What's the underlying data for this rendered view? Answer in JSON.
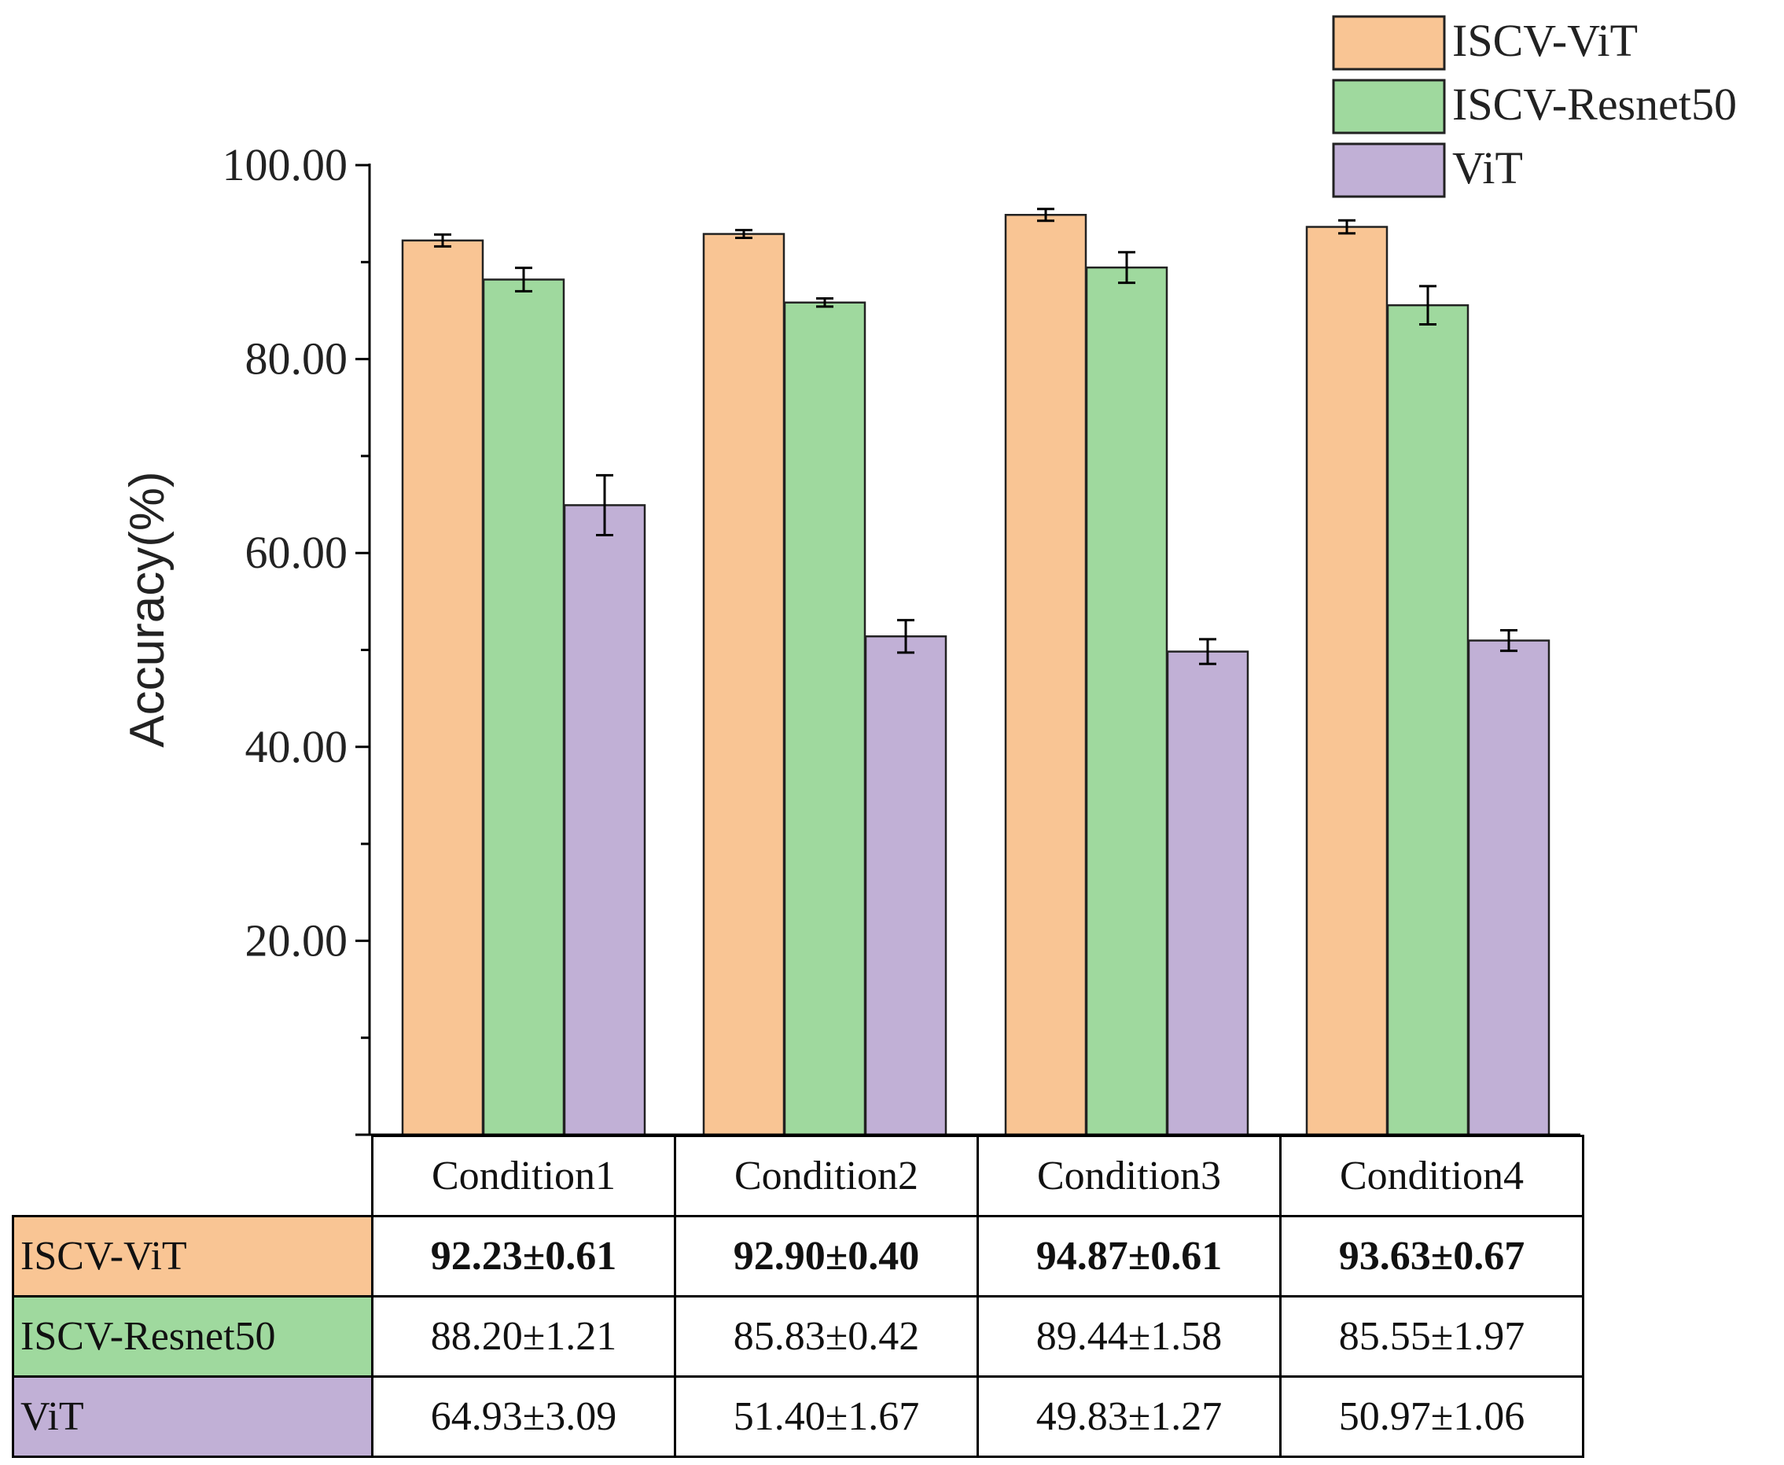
{
  "chart_data": {
    "type": "bar",
    "title": "",
    "xlabel": "",
    "ylabel": "Accuracy(%)",
    "ylim": [
      0,
      100
    ],
    "yticks": [
      "20.00",
      "40.00",
      "60.00",
      "80.00",
      "100.00"
    ],
    "ytick_values": [
      20,
      40,
      60,
      80,
      100
    ],
    "categories": [
      "Condition1",
      "Condition2",
      "Condition3",
      "Condition4"
    ],
    "series": [
      {
        "name": "ISCV-ViT",
        "color": "#f9c594",
        "values": [
          92.23,
          92.9,
          94.87,
          93.63
        ],
        "errors": [
          0.61,
          0.4,
          0.61,
          0.67
        ]
      },
      {
        "name": "ISCV-Resnet50",
        "color": "#9fd99e",
        "values": [
          88.2,
          85.83,
          89.44,
          85.55
        ],
        "errors": [
          1.21,
          0.42,
          1.58,
          1.97
        ]
      },
      {
        "name": "ViT",
        "color": "#c1b0d6",
        "values": [
          64.93,
          51.4,
          49.83,
          50.97
        ],
        "errors": [
          3.09,
          1.67,
          1.27,
          1.06
        ]
      }
    ],
    "legend_position": "top-right",
    "grid": false
  },
  "table": {
    "headers": [
      "Condition1",
      "Condition2",
      "Condition3",
      "Condition4"
    ],
    "rows": [
      {
        "label": "ISCV-ViT",
        "color": "#f9c594",
        "bold": true,
        "cells": [
          "92.23±0.61",
          "92.90±0.40",
          "94.87±0.61",
          "93.63±0.67"
        ]
      },
      {
        "label": "ISCV-Resnet50",
        "color": "#9fd99e",
        "bold": false,
        "cells": [
          "88.20±1.21",
          "85.83±0.42",
          "89.44±1.58",
          "85.55±1.97"
        ]
      },
      {
        "label": "ViT",
        "color": "#c1b0d6",
        "bold": false,
        "cells": [
          "64.93±3.09",
          "51.40±1.67",
          "49.83±1.27",
          "50.97±1.06"
        ]
      }
    ]
  }
}
